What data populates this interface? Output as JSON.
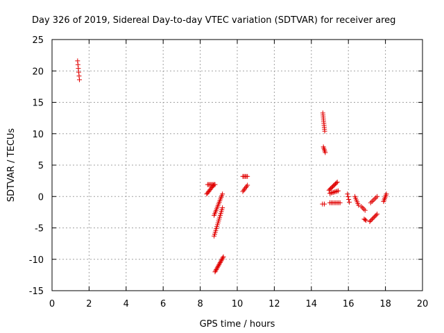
{
  "chart_data": {
    "type": "scatter",
    "title": "Day 326 of 2019, Sidereal Day-to-day VTEC variation (SDTVAR) for receiver areg",
    "xlabel": "GPS time / hours",
    "ylabel": "SDTVAR / TECUs",
    "xlim": [
      0,
      20
    ],
    "ylim": [
      -15,
      25
    ],
    "grid": true,
    "marker": "+",
    "color": "#e00000",
    "x_ticks": [
      0,
      2,
      4,
      6,
      8,
      10,
      12,
      14,
      16,
      18,
      20
    ],
    "y_ticks": [
      -15,
      -10,
      -5,
      0,
      5,
      10,
      15,
      20,
      25
    ],
    "segments": [
      {
        "x0": 1.38,
        "y0": 21.6,
        "x1": 1.48,
        "y1": 18.6,
        "n": 6
      },
      {
        "x0": 8.35,
        "y0": 0.4,
        "x1": 8.75,
        "y1": 1.9,
        "n": 10
      },
      {
        "x0": 8.4,
        "y0": 1.9,
        "x1": 8.8,
        "y1": 1.9,
        "n": 8
      },
      {
        "x0": 8.75,
        "y0": -3.0,
        "x1": 9.2,
        "y1": 0.4,
        "n": 14
      },
      {
        "x0": 8.75,
        "y0": -6.3,
        "x1": 9.2,
        "y1": -1.8,
        "n": 16
      },
      {
        "x0": 8.8,
        "y0": -12.0,
        "x1": 9.25,
        "y1": -9.6,
        "n": 14
      },
      {
        "x0": 10.3,
        "y0": 3.2,
        "x1": 10.55,
        "y1": 3.2,
        "n": 5
      },
      {
        "x0": 10.3,
        "y0": 0.8,
        "x1": 10.55,
        "y1": 1.8,
        "n": 6
      },
      {
        "x0": 14.62,
        "y0": 13.3,
        "x1": 14.72,
        "y1": 10.4,
        "n": 10
      },
      {
        "x0": 14.65,
        "y0": 7.9,
        "x1": 14.75,
        "y1": 7.0,
        "n": 5
      },
      {
        "x0": 14.6,
        "y0": -1.2,
        "x1": 14.7,
        "y1": -1.2,
        "n": 2
      },
      {
        "x0": 14.95,
        "y0": 1.0,
        "x1": 15.4,
        "y1": 2.3,
        "n": 10
      },
      {
        "x0": 15.0,
        "y0": 0.5,
        "x1": 15.45,
        "y1": 0.9,
        "n": 8
      },
      {
        "x0": 15.0,
        "y0": -1.0,
        "x1": 15.55,
        "y1": -1.0,
        "n": 8
      },
      {
        "x0": 15.95,
        "y0": 0.4,
        "x1": 16.05,
        "y1": -0.9,
        "n": 4
      },
      {
        "x0": 16.35,
        "y0": 0.0,
        "x1": 16.55,
        "y1": -1.4,
        "n": 6
      },
      {
        "x0": 16.7,
        "y0": -1.6,
        "x1": 16.9,
        "y1": -2.2,
        "n": 4
      },
      {
        "x0": 16.85,
        "y0": -3.6,
        "x1": 16.95,
        "y1": -3.8,
        "n": 3
      },
      {
        "x0": 17.15,
        "y0": -4.0,
        "x1": 17.55,
        "y1": -2.8,
        "n": 8
      },
      {
        "x0": 17.2,
        "y0": -1.0,
        "x1": 17.55,
        "y1": 0.0,
        "n": 6
      },
      {
        "x0": 17.9,
        "y0": -0.8,
        "x1": 18.05,
        "y1": 0.4,
        "n": 6
      }
    ]
  }
}
